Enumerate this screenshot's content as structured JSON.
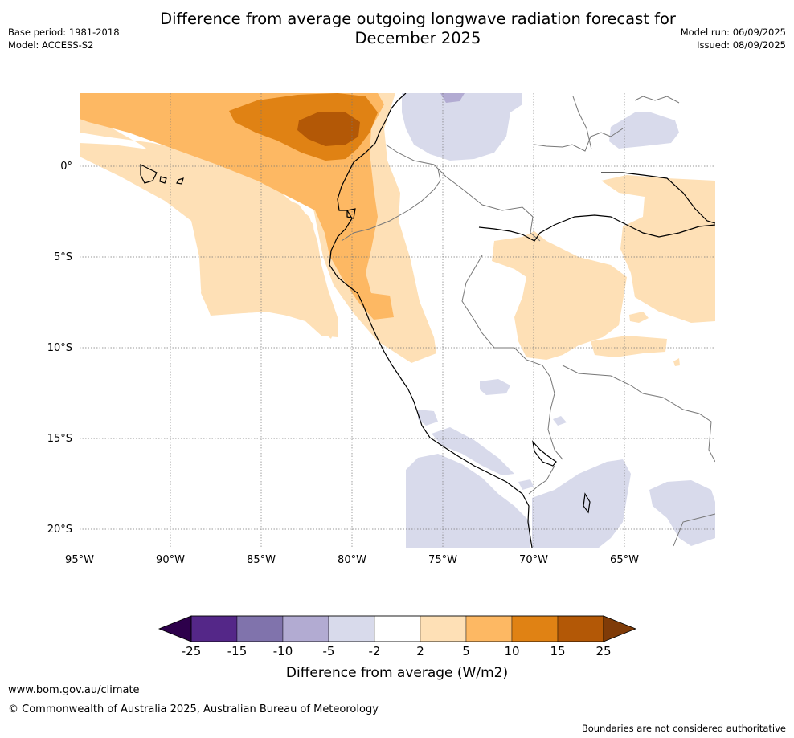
{
  "title": "Difference from average outgoing longwave radiation forecast for December 2025",
  "meta_left": {
    "base_period": "Base period: 1981-2018",
    "model": "Model: ACCESS-S2"
  },
  "meta_right": {
    "model_run": "Model run: 06/09/2025",
    "issued": "Issued: 08/09/2025"
  },
  "map": {
    "lon_labels": [
      "95°W",
      "90°W",
      "85°W",
      "80°W",
      "75°W",
      "70°W",
      "65°W"
    ],
    "lat_labels": [
      "0°",
      "5°S",
      "10°S",
      "15°S",
      "20°S"
    ],
    "ocean_color": "#ffffff"
  },
  "legend": {
    "title": "Difference from average (W/m2)",
    "ticks": [
      "-25",
      "-15",
      "-10",
      "-5",
      "-2",
      "2",
      "5",
      "10",
      "15",
      "25"
    ],
    "colors": [
      "#2d004b",
      "#542788",
      "#8073ac",
      "#b2abd2",
      "#d8daeb",
      "#ffffff",
      "#fee0b6",
      "#fdb863",
      "#e08214",
      "#b35806",
      "#7f3b08"
    ]
  },
  "footer": {
    "url": "www.bom.gov.au/climate",
    "copyright": "© Commonwealth of Australia 2025, Australian Bureau of Meteorology",
    "note": "Boundaries are not considered authoritative"
  }
}
